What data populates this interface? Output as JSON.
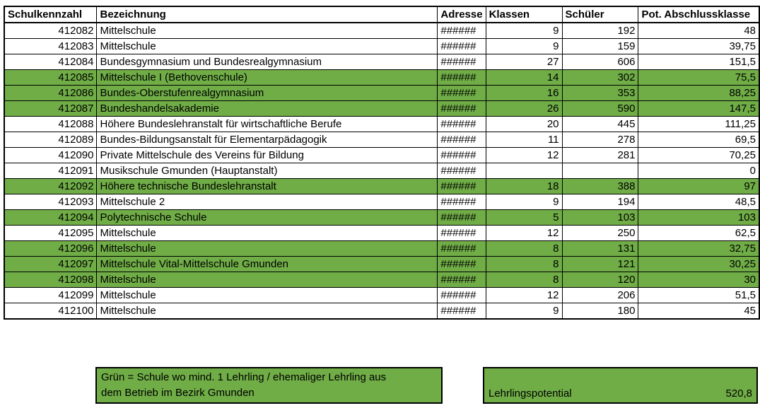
{
  "colors": {
    "highlight_green": "#70AD47",
    "border_black": "#000000",
    "background": "#FFFFFF",
    "text": "#000000"
  },
  "table": {
    "columns": [
      {
        "key": "schulkennzahl",
        "label": "Schulkennzahl"
      },
      {
        "key": "bezeichnung",
        "label": "Bezeichnung"
      },
      {
        "key": "adresse",
        "label": "Adresse"
      },
      {
        "key": "klassen",
        "label": "Klassen"
      },
      {
        "key": "schueler",
        "label": "Schüler"
      },
      {
        "key": "pot_abschlussklasse",
        "label": "Pot. Abschlussklasse"
      }
    ],
    "rows": [
      {
        "cells": [
          "412082",
          "Mittelschule",
          "######",
          "9",
          "192",
          "48"
        ],
        "highlighted": false
      },
      {
        "cells": [
          "412083",
          "Mittelschule",
          "######",
          "9",
          "159",
          "39,75"
        ],
        "highlighted": false
      },
      {
        "cells": [
          "412084",
          "Bundesgymnasium und Bundesrealgymnasium",
          "######",
          "27",
          "606",
          "151,5"
        ],
        "highlighted": false
      },
      {
        "cells": [
          "412085",
          "Mittelschule I (Bethovenschule)",
          "######",
          "14",
          "302",
          "75,5"
        ],
        "highlighted": true
      },
      {
        "cells": [
          "412086",
          "Bundes-Oberstufenrealgymnasium",
          "######",
          "16",
          "353",
          "88,25"
        ],
        "highlighted": true
      },
      {
        "cells": [
          "412087",
          "Bundeshandelsakademie",
          "######",
          "26",
          "590",
          "147,5"
        ],
        "highlighted": true
      },
      {
        "cells": [
          "412088",
          "Höhere Bundeslehranstalt für wirtschaftliche Berufe",
          "######",
          "20",
          "445",
          "111,25"
        ],
        "highlighted": false
      },
      {
        "cells": [
          "412089",
          "Bundes-Bildungsanstalt für Elementarpädagogik",
          "######",
          "11",
          "278",
          "69,5"
        ],
        "highlighted": false
      },
      {
        "cells": [
          "412090",
          "Private Mittelschule des Vereins für Bildung",
          "######",
          "12",
          "281",
          "70,25"
        ],
        "highlighted": false
      },
      {
        "cells": [
          "412091",
          "Musikschule Gmunden (Hauptanstalt)",
          "######",
          "",
          "",
          "0"
        ],
        "highlighted": false
      },
      {
        "cells": [
          "412092",
          "Höhere technische Bundeslehranstalt",
          "######",
          "18",
          "388",
          "97"
        ],
        "highlighted": true
      },
      {
        "cells": [
          "412093",
          "Mittelschule 2",
          "######",
          "9",
          "194",
          "48,5"
        ],
        "highlighted": false
      },
      {
        "cells": [
          "412094",
          "Polytechnische Schule",
          "######",
          "5",
          "103",
          "103"
        ],
        "highlighted": true
      },
      {
        "cells": [
          "412095",
          "Mittelschule",
          "######",
          "12",
          "250",
          "62,5"
        ],
        "highlighted": false
      },
      {
        "cells": [
          "412096",
          "Mittelschule",
          "######",
          "8",
          "131",
          "32,75"
        ],
        "highlighted": true
      },
      {
        "cells": [
          "412097",
          "Mittelschule Vital-Mittelschule Gmunden",
          "######",
          "8",
          "121",
          "30,25"
        ],
        "highlighted": true
      },
      {
        "cells": [
          "412098",
          "Mittelschule",
          "######",
          "8",
          "120",
          "30"
        ],
        "highlighted": true
      },
      {
        "cells": [
          "412099",
          "Mittelschule",
          "######",
          "12",
          "206",
          "51,5"
        ],
        "highlighted": false
      },
      {
        "cells": [
          "412100",
          "Mittelschule",
          "######",
          "9",
          "180",
          "45"
        ],
        "highlighted": false
      }
    ]
  },
  "legend": {
    "lines": [
      "Grün = Schule wo mind. 1 Lehrling / ehemaliger Lehrling aus",
      "dem Betrieb im Bezirk Gmunden"
    ]
  },
  "summary": {
    "label": "Lehrlingspotential",
    "value": "520,8"
  }
}
